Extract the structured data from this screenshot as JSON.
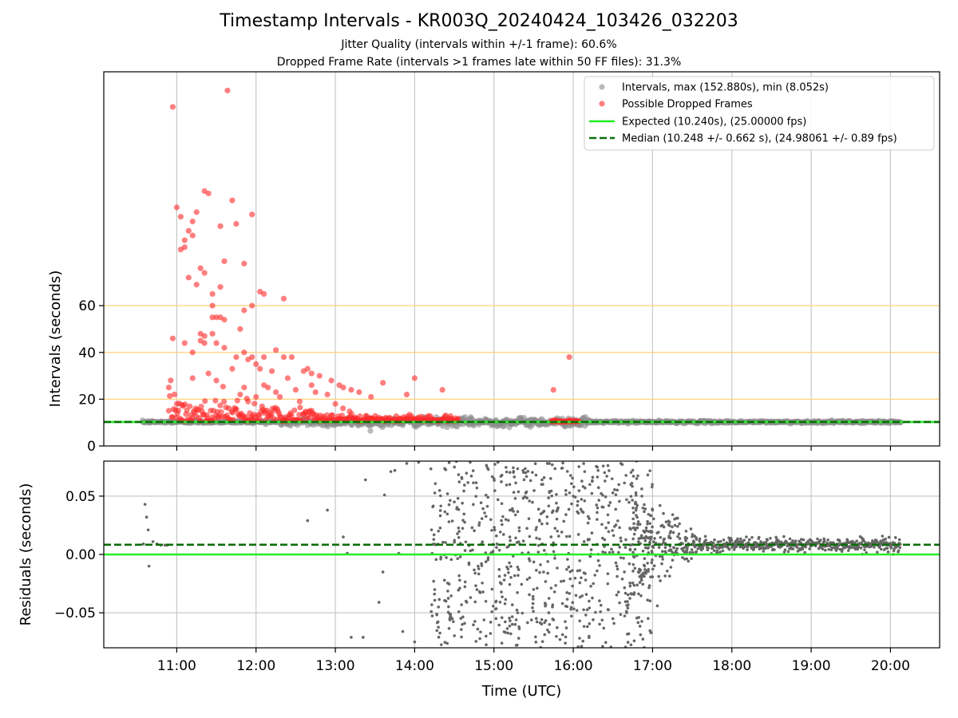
{
  "header": {
    "title": "Timestamp Intervals - KR003Q_20240424_103426_032203",
    "subtitle_jitter": "Jitter Quality (intervals within +/-1 frame): 60.6%",
    "subtitle_dropped": "Dropped Frame Rate (intervals >1 frames late within 50 FF files): 31.3%"
  },
  "colors": {
    "intervals": "#8c8c8c",
    "dropped": "#ff2a2a",
    "expected": "#22ee22",
    "median": "#0a6e0a",
    "threshold_lines": "#ffd27a",
    "grid": "#c8c8c8",
    "residual_points": "#666666"
  },
  "chart_data": [
    {
      "type": "scatter",
      "panel": "top",
      "ylabel": "Intervals (seconds)",
      "xlim_hours": [
        10.08,
        20.62
      ],
      "ylim": [
        0,
        160
      ],
      "yticks": [
        0,
        20,
        40,
        60
      ],
      "xticks_hours": [
        11,
        12,
        13,
        14,
        15,
        16,
        17,
        18,
        19,
        20
      ],
      "grid": "x",
      "legend_placement": "top-right",
      "legend": [
        "Intervals, max (152.880s), min (8.052s)",
        "Possible Dropped Frames",
        "Expected (10.240s), (25.00000 fps)",
        "Median (10.248 +/- 0.662 s), (24.98061 +/- 0.89 fps)"
      ],
      "threshold_lines": [
        20,
        40,
        60
      ],
      "expected_line": 10.24,
      "median_line": 10.248,
      "intervals_span_hours": [
        10.57,
        20.13
      ],
      "intervals_baseline": 10.24,
      "series": [
        {
          "name": "Possible Dropped Frames",
          "points": [
            [
              10.95,
              145
            ],
            [
              11.64,
              152
            ],
            [
              10.95,
              46
            ],
            [
              11.0,
              102
            ],
            [
              11.05,
              98
            ],
            [
              11.1,
              85
            ],
            [
              11.15,
              92
            ],
            [
              11.2,
              96
            ],
            [
              11.25,
              100
            ],
            [
              11.35,
              109
            ],
            [
              11.4,
              108
            ],
            [
              11.45,
              60
            ],
            [
              11.55,
              94
            ],
            [
              11.7,
              105
            ],
            [
              11.95,
              99
            ],
            [
              11.05,
              84
            ],
            [
              11.1,
              88
            ],
            [
              11.15,
              72
            ],
            [
              11.2,
              90
            ],
            [
              11.25,
              69
            ],
            [
              11.3,
              76
            ],
            [
              11.35,
              74
            ],
            [
              11.45,
              65
            ],
            [
              11.55,
              68
            ],
            [
              11.6,
              79
            ],
            [
              11.75,
              95
            ],
            [
              11.85,
              78
            ],
            [
              12.05,
              66
            ],
            [
              12.1,
              65
            ],
            [
              12.35,
              63
            ],
            [
              11.3,
              48
            ],
            [
              11.35,
              44
            ],
            [
              11.45,
              55
            ],
            [
              11.5,
              55
            ],
            [
              11.55,
              55
            ],
            [
              11.6,
              54
            ],
            [
              11.85,
              58
            ],
            [
              11.95,
              60
            ],
            [
              11.1,
              44
            ],
            [
              11.2,
              40
            ],
            [
              11.3,
              45
            ],
            [
              11.35,
              47
            ],
            [
              11.45,
              48
            ],
            [
              11.5,
              44
            ],
            [
              11.6,
              42
            ],
            [
              11.75,
              38
            ],
            [
              11.8,
              50
            ],
            [
              11.85,
              40
            ],
            [
              11.9,
              37
            ],
            [
              11.95,
              38
            ],
            [
              12.0,
              35
            ],
            [
              12.05,
              33
            ],
            [
              12.1,
              38
            ],
            [
              12.2,
              32
            ],
            [
              12.25,
              41
            ],
            [
              12.35,
              38
            ],
            [
              12.45,
              38
            ],
            [
              12.6,
              32
            ],
            [
              12.65,
              33
            ],
            [
              12.7,
              31
            ],
            [
              12.8,
              30
            ],
            [
              12.95,
              28
            ],
            [
              13.05,
              26
            ],
            [
              13.1,
              25
            ],
            [
              13.2,
              24
            ],
            [
              13.3,
              23
            ],
            [
              13.45,
              21
            ],
            [
              13.6,
              27
            ],
            [
              13.9,
              22
            ],
            [
              14.0,
              29
            ],
            [
              14.35,
              24
            ],
            [
              15.75,
              24
            ],
            [
              15.95,
              38
            ],
            [
              10.9,
              25
            ],
            [
              11.0,
              18
            ],
            [
              11.2,
              29
            ],
            [
              11.4,
              31
            ],
            [
              11.5,
              28
            ],
            [
              11.7,
              33
            ],
            [
              11.8,
              22
            ],
            [
              11.85,
              25
            ],
            [
              11.9,
              19
            ],
            [
              12.0,
              21
            ],
            [
              12.1,
              26
            ],
            [
              12.15,
              25
            ],
            [
              12.25,
              23
            ],
            [
              12.3,
              21
            ],
            [
              12.4,
              29
            ],
            [
              12.5,
              24
            ],
            [
              12.55,
              19
            ],
            [
              12.7,
              26
            ],
            [
              12.75,
              23
            ],
            [
              12.9,
              22
            ],
            [
              13.0,
              18
            ]
          ]
        }
      ]
    },
    {
      "type": "scatter",
      "panel": "bottom",
      "xlabel": "Time (UTC)",
      "ylabel": "Residuals (seconds)",
      "xlim_hours": [
        10.08,
        20.62
      ],
      "ylim": [
        -0.08,
        0.08
      ],
      "yticks": [
        -0.05,
        0.0,
        0.05
      ],
      "ytick_labels": [
        "−0.05",
        "0.00",
        "0.05"
      ],
      "xticks_hours": [
        11,
        12,
        13,
        14,
        15,
        16,
        17,
        18,
        19,
        20
      ],
      "xtick_labels": [
        "11:00",
        "12:00",
        "13:00",
        "14:00",
        "15:00",
        "16:00",
        "17:00",
        "18:00",
        "19:00",
        "20:00"
      ],
      "grid": "both",
      "zero_line": 0.0,
      "median_residual": 0.0083,
      "series": [
        {
          "name": "Residuals",
          "points": [
            [
              10.6,
              0.043
            ],
            [
              10.62,
              0.032
            ],
            [
              10.65,
              -0.01
            ],
            [
              10.64,
              0.021
            ],
            [
              10.58,
              0.009
            ],
            [
              10.7,
              0.011
            ],
            [
              10.75,
              0.009
            ],
            [
              10.8,
              0.008
            ],
            [
              10.85,
              0.008
            ],
            [
              10.88,
              0.008
            ],
            [
              12.65,
              0.029
            ],
            [
              12.9,
              0.038
            ],
            [
              13.1,
              0.015
            ],
            [
              13.15,
              0.001
            ],
            [
              13.2,
              -0.071
            ],
            [
              13.35,
              -0.071
            ],
            [
              13.38,
              0.064
            ],
            [
              13.55,
              -0.041
            ],
            [
              13.6,
              -0.015
            ],
            [
              13.62,
              0.051
            ],
            [
              13.7,
              0.071
            ],
            [
              13.75,
              0.072
            ],
            [
              13.8,
              0.001
            ],
            [
              13.85,
              -0.066
            ],
            [
              13.9,
              0.078
            ],
            [
              14.0,
              -0.075
            ],
            [
              14.05,
              0.079
            ],
            [
              14.3,
              -0.045
            ],
            [
              14.5,
              0.045
            ],
            [
              14.6,
              -0.06
            ],
            [
              14.7,
              0.079
            ],
            [
              14.9,
              -0.07
            ],
            [
              15.0,
              0.065
            ],
            [
              15.05,
              0.079
            ],
            [
              15.1,
              -0.076
            ],
            [
              15.2,
              0.015
            ],
            [
              15.3,
              -0.05
            ],
            [
              15.4,
              0.07
            ],
            [
              15.5,
              -0.03
            ],
            [
              15.6,
              0.06
            ],
            [
              15.7,
              -0.06
            ],
            [
              15.8,
              0.02
            ],
            [
              15.9,
              -0.076
            ],
            [
              16.0,
              0.05
            ],
            [
              16.2,
              -0.04
            ],
            [
              16.4,
              0.063
            ],
            [
              16.5,
              -0.055
            ],
            [
              16.6,
              0.078
            ],
            [
              16.7,
              -0.068
            ],
            [
              16.8,
              0.065
            ],
            [
              16.9,
              -0.01
            ],
            [
              17.0,
              0.038
            ],
            [
              14.3,
              0.02
            ],
            [
              14.8,
              -0.01
            ],
            [
              15.15,
              0.03
            ],
            [
              15.45,
              -0.02
            ],
            [
              15.75,
              0.01
            ],
            [
              16.1,
              -0.02
            ],
            [
              16.3,
              0.03
            ],
            [
              16.55,
              -0.01
            ]
          ]
        }
      ]
    }
  ]
}
